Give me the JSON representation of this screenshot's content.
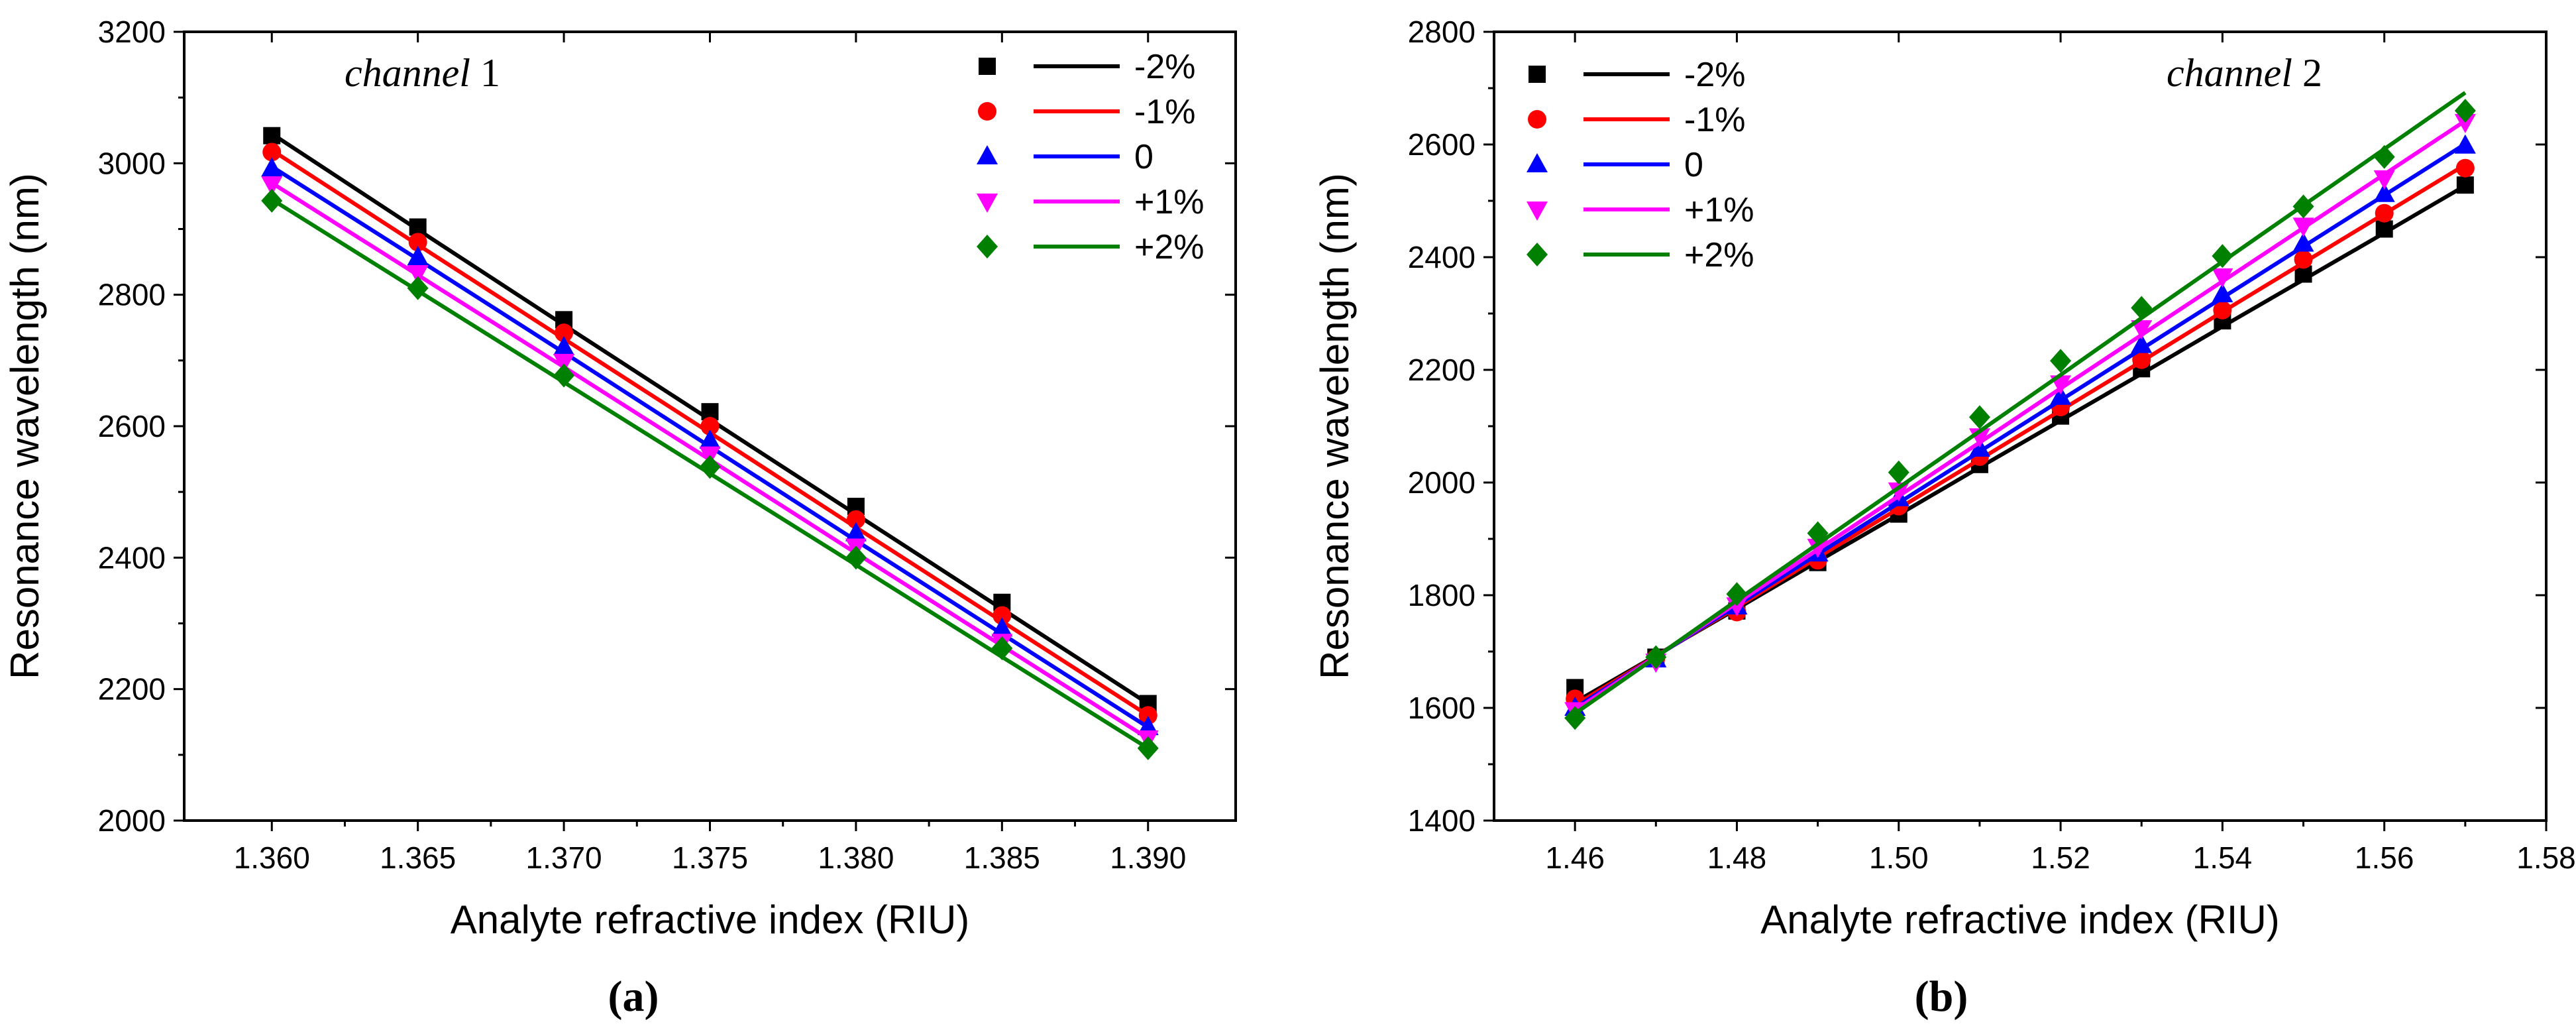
{
  "colors": {
    "-2%": "#000000",
    "-1%": "#ff0000",
    "0": "#0000ff",
    "+1%": "#ff00ff",
    "+2%": "#008000"
  },
  "chart_data": [
    {
      "type": "scatter",
      "panel_label": "(a)",
      "annotation": {
        "italic": "channel",
        "plain": " 1"
      },
      "xlabel": "Analyte refractive index (RIU)",
      "ylabel": "Resonance wavelength (nm)",
      "xlim": [
        1.357,
        1.393
      ],
      "ylim": [
        2000,
        3200
      ],
      "xticks": [
        1.36,
        1.365,
        1.37,
        1.375,
        1.38,
        1.385,
        1.39
      ],
      "xtick_labels": [
        "1.360",
        "1.365",
        "1.370",
        "1.375",
        "1.380",
        "1.385",
        "1.390"
      ],
      "yticks": [
        2000,
        2200,
        2400,
        2600,
        2800,
        3000,
        3200
      ],
      "ytick_labels": [
        "2000",
        "2200",
        "2400",
        "2600",
        "2800",
        "3000",
        "3200"
      ],
      "legend_position": "top-right",
      "x": [
        1.36,
        1.365,
        1.37,
        1.375,
        1.38,
        1.385,
        1.39
      ],
      "series": [
        {
          "name": "-2%",
          "marker": "square",
          "values": [
            3042,
            2903,
            2762,
            2622,
            2478,
            2332,
            2178
          ],
          "fit": [
            3045,
            2899,
            2754,
            2610,
            2466,
            2322,
            2178
          ]
        },
        {
          "name": "-1%",
          "marker": "circle",
          "values": [
            3017,
            2880,
            2742,
            2600,
            2458,
            2312,
            2160
          ],
          "fit": [
            3020,
            2876,
            2733,
            2590,
            2446,
            2303,
            2160
          ]
        },
        {
          "name": "0",
          "marker": "triangle-up",
          "values": [
            2992,
            2857,
            2720,
            2578,
            2437,
            2292,
            2142
          ],
          "fit": [
            2995,
            2854,
            2712,
            2569,
            2426,
            2284,
            2142
          ]
        },
        {
          "name": "+1%",
          "marker": "triangle-down",
          "values": [
            2968,
            2833,
            2698,
            2557,
            2417,
            2272,
            2125
          ],
          "fit": [
            2970,
            2830,
            2690,
            2549,
            2407,
            2266,
            2125
          ]
        },
        {
          "name": "+2%",
          "marker": "diamond",
          "values": [
            2943,
            2810,
            2677,
            2538,
            2400,
            2262,
            2110
          ],
          "fit": [
            2945,
            2806,
            2667,
            2528,
            2389,
            2249,
            2110
          ]
        }
      ]
    },
    {
      "type": "scatter",
      "panel_label": "(b)",
      "annotation": {
        "italic": "channel",
        "plain": " 2"
      },
      "xlabel": "Analyte refractive index (RIU)",
      "ylabel": "Resonance wavelength (nm)",
      "xlim": [
        1.45,
        1.58
      ],
      "ylim": [
        1400,
        2800
      ],
      "xticks": [
        1.46,
        1.48,
        1.5,
        1.52,
        1.54,
        1.56,
        1.58
      ],
      "xtick_labels": [
        "1.46",
        "1.48",
        "1.50",
        "1.52",
        "1.54",
        "1.56",
        "1.58"
      ],
      "yticks": [
        1400,
        1600,
        1800,
        2000,
        2200,
        2400,
        2600,
        2800
      ],
      "ytick_labels": [
        "1400",
        "1600",
        "1800",
        "2000",
        "2200",
        "2400",
        "2600",
        "2800"
      ],
      "legend_position": "top-left",
      "x": [
        1.46,
        1.47,
        1.48,
        1.49,
        1.5,
        1.51,
        1.52,
        1.53,
        1.54,
        1.55,
        1.56,
        1.57
      ],
      "series": [
        {
          "name": "-2%",
          "marker": "square",
          "values": [
            1636,
            1690,
            1772,
            1858,
            1944,
            2032,
            2118,
            2202,
            2287,
            2370,
            2450,
            2528
          ],
          "fit": [
            1610,
            1693,
            1776,
            1860,
            1943,
            2027,
            2110,
            2193,
            2277,
            2360,
            2443,
            2527
          ]
        },
        {
          "name": "-1%",
          "marker": "circle",
          "values": [
            1616,
            1688,
            1770,
            1862,
            1958,
            2046,
            2134,
            2218,
            2306,
            2396,
            2478,
            2558
          ],
          "fit": [
            1605,
            1692,
            1779,
            1867,
            1954,
            2041,
            2128,
            2215,
            2303,
            2390,
            2477,
            2564
          ]
        },
        {
          "name": "0",
          "marker": "triangle-up",
          "values": [
            1600,
            1686,
            1780,
            1874,
            1972,
            2060,
            2152,
            2244,
            2334,
            2424,
            2512,
            2598
          ],
          "fit": [
            1600,
            1691,
            1782,
            1873,
            1964,
            2055,
            2146,
            2237,
            2328,
            2419,
            2510,
            2601
          ]
        },
        {
          "name": "+1%",
          "marker": "triangle-down",
          "values": [
            1596,
            1682,
            1782,
            1886,
            1986,
            2082,
            2176,
            2274,
            2366,
            2456,
            2540,
            2640
          ],
          "fit": [
            1596,
            1691,
            1786,
            1881,
            1976,
            2071,
            2167,
            2262,
            2357,
            2452,
            2547,
            2642
          ]
        },
        {
          "name": "+2%",
          "marker": "diamond",
          "values": [
            1582,
            1690,
            1802,
            1910,
            2018,
            2116,
            2216,
            2310,
            2402,
            2490,
            2578,
            2660
          ],
          "fit": [
            1590,
            1690,
            1791,
            1891,
            1991,
            2091,
            2191,
            2292,
            2392,
            2492,
            2592,
            2692
          ]
        }
      ]
    }
  ]
}
